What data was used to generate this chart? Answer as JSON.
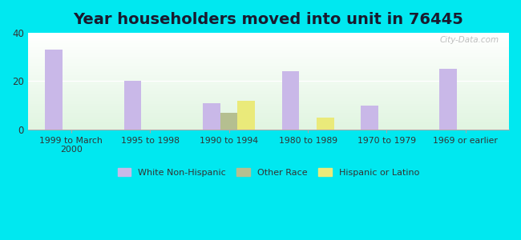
{
  "title": "Year householders moved into unit in 76445",
  "categories": [
    "1999 to March\n2000",
    "1995 to 1998",
    "1990 to 1994",
    "1980 to 1989",
    "1970 to 1979",
    "1969 or earlier"
  ],
  "white_non_hispanic": [
    33,
    20,
    11,
    24,
    10,
    25
  ],
  "other_race": [
    0,
    0,
    7,
    0,
    0,
    0
  ],
  "hispanic_or_latino": [
    0,
    0,
    12,
    5,
    0,
    0
  ],
  "bar_width": 0.22,
  "ylim": [
    0,
    40
  ],
  "yticks": [
    0,
    20,
    40
  ],
  "color_white": "#c9b8e8",
  "color_other": "#b5bf90",
  "color_hispanic": "#eaea7a",
  "bg_outer": "#00e8f0",
  "title_fontsize": 14,
  "title_color": "#1a1a2e",
  "watermark": "City-Data.com"
}
